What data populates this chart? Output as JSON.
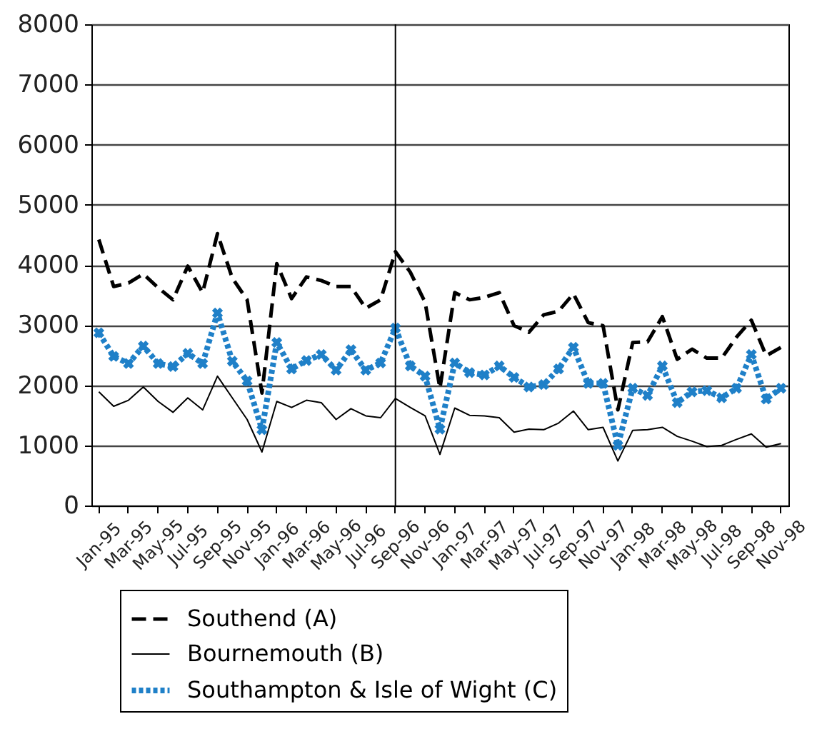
{
  "chart_data": {
    "type": "line",
    "categories": [
      "Jan-95",
      null,
      "Mar-95",
      null,
      "May-95",
      null,
      "Jul-95",
      null,
      "Sep-95",
      null,
      "Nov-95",
      null,
      "Jan-96",
      null,
      "Mar-96",
      null,
      "May-96",
      null,
      "Jul-96",
      null,
      "Sep-96",
      null,
      "Nov-96",
      null,
      "Jan-97",
      null,
      "Mar-97",
      null,
      "May-97",
      null,
      "Jul-97",
      null,
      "Sep-97",
      null,
      "Nov-97",
      null,
      "Jan-98",
      null,
      "Mar-98",
      null,
      "May-98",
      null,
      "Jul-98",
      null,
      "Sep-98",
      null,
      "Nov-98"
    ],
    "series": [
      {
        "name": "Southend (A)",
        "color": "#000000",
        "line_style": "dashed",
        "marker": "none",
        "values": [
          4420,
          3640,
          3700,
          3850,
          3620,
          3420,
          3980,
          3540,
          4520,
          3780,
          3420,
          1870,
          4020,
          3440,
          3800,
          3740,
          3640,
          3640,
          3280,
          3420,
          4220,
          3880,
          3380,
          1950,
          3540,
          3420,
          3460,
          3540,
          2990,
          2880,
          3170,
          3230,
          3520,
          3040,
          2990,
          1590,
          2710,
          2720,
          3140,
          2430,
          2600,
          2450,
          2450,
          2800,
          3080,
          2490,
          2630
        ]
      },
      {
        "name": "Bournemouth (B)",
        "color": "#000000",
        "line_style": "solid",
        "marker": "none",
        "values": [
          1890,
          1650,
          1750,
          1970,
          1730,
          1550,
          1790,
          1590,
          2150,
          1790,
          1430,
          890,
          1730,
          1630,
          1750,
          1710,
          1430,
          1610,
          1490,
          1460,
          1780,
          1630,
          1490,
          850,
          1620,
          1500,
          1490,
          1460,
          1220,
          1270,
          1260,
          1370,
          1570,
          1260,
          1300,
          740,
          1250,
          1260,
          1300,
          1150,
          1070,
          980,
          1000,
          1100,
          1190,
          970,
          1030
        ]
      },
      {
        "name": "Southampton & Isle of Wight (C)",
        "color": "#1f80c8",
        "line_style": "dotted",
        "marker": "cross",
        "values": [
          2870,
          2480,
          2360,
          2650,
          2360,
          2310,
          2530,
          2360,
          3200,
          2400,
          2070,
          1260,
          2710,
          2270,
          2410,
          2510,
          2250,
          2590,
          2250,
          2370,
          2950,
          2320,
          2150,
          1270,
          2370,
          2210,
          2170,
          2320,
          2130,
          1970,
          2010,
          2270,
          2630,
          2030,
          2030,
          1000,
          1950,
          1830,
          2320,
          1710,
          1890,
          1910,
          1790,
          1950,
          2510,
          1770,
          1950
        ]
      }
    ],
    "ylim": [
      0,
      8000
    ],
    "yticks": [
      0,
      1000,
      2000,
      3000,
      4000,
      5000,
      6000,
      7000,
      8000
    ],
    "grid": "y",
    "legend": "bottom",
    "ref_lines": [
      {
        "axis": "x",
        "value": "Sep-96",
        "label": null
      }
    ]
  }
}
